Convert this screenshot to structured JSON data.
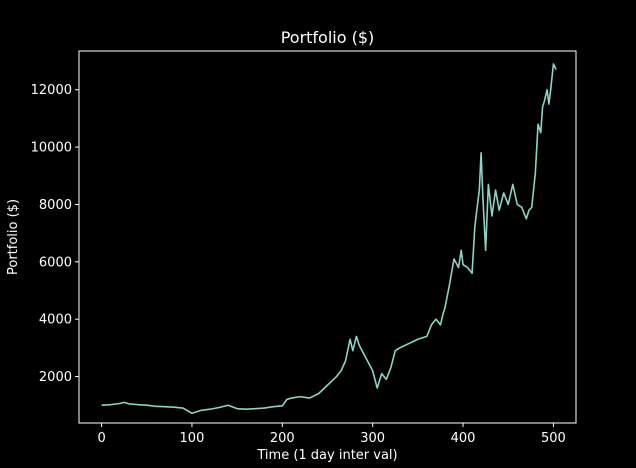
{
  "chart_data": {
    "type": "line",
    "title": "Portfolio ($)",
    "xlabel": "Time (1 day inter val)",
    "ylabel": "Portfolio ($)",
    "xlim": [
      -25,
      525
    ],
    "ylim": [
      380,
      13350
    ],
    "x_ticks": [
      0,
      100,
      200,
      300,
      400,
      500
    ],
    "y_ticks": [
      2000,
      4000,
      6000,
      8000,
      10000,
      12000
    ],
    "grid": false,
    "legend": "none",
    "colors": {
      "background": "#000000",
      "axes": "#ffffff",
      "line": "#8dd3c7"
    },
    "series": [
      {
        "x": [
          0,
          10,
          20,
          25,
          30,
          40,
          50,
          60,
          70,
          80,
          90,
          100,
          110,
          120,
          130,
          140,
          150,
          160,
          170,
          180,
          190,
          200,
          205,
          210,
          220,
          230,
          240,
          250,
          260,
          265,
          270,
          275,
          278,
          282,
          285,
          290,
          295,
          300,
          305,
          310,
          315,
          320,
          325,
          330,
          340,
          350,
          360,
          365,
          370,
          375,
          378,
          380,
          385,
          390,
          395,
          398,
          400,
          405,
          410,
          413,
          416,
          418,
          420,
          422,
          425,
          428,
          432,
          436,
          440,
          445,
          450,
          455,
          460,
          465,
          470,
          473,
          476,
          480,
          483,
          486,
          488,
          490,
          493,
          495,
          497,
          500,
          503
        ],
        "y": [
          1000,
          1020,
          1060,
          1100,
          1050,
          1020,
          1000,
          960,
          950,
          930,
          900,
          720,
          820,
          860,
          920,
          1000,
          880,
          860,
          880,
          900,
          950,
          980,
          1200,
          1250,
          1300,
          1250,
          1400,
          1700,
          2000,
          2200,
          2550,
          3300,
          2900,
          3400,
          3100,
          2800,
          2500,
          2200,
          1600,
          2100,
          1900,
          2300,
          2900,
          3000,
          3150,
          3300,
          3400,
          3800,
          4000,
          3800,
          4200,
          4400,
          5200,
          6100,
          5800,
          6400,
          5900,
          5800,
          5600,
          7200,
          8000,
          8500,
          9800,
          8200,
          6400,
          8700,
          7600,
          8500,
          7800,
          8400,
          8000,
          8700,
          8000,
          7900,
          7500,
          7800,
          7900,
          9100,
          10800,
          10500,
          11400,
          11600,
          12000,
          11500,
          12000,
          12900,
          12700
        ]
      }
    ]
  }
}
